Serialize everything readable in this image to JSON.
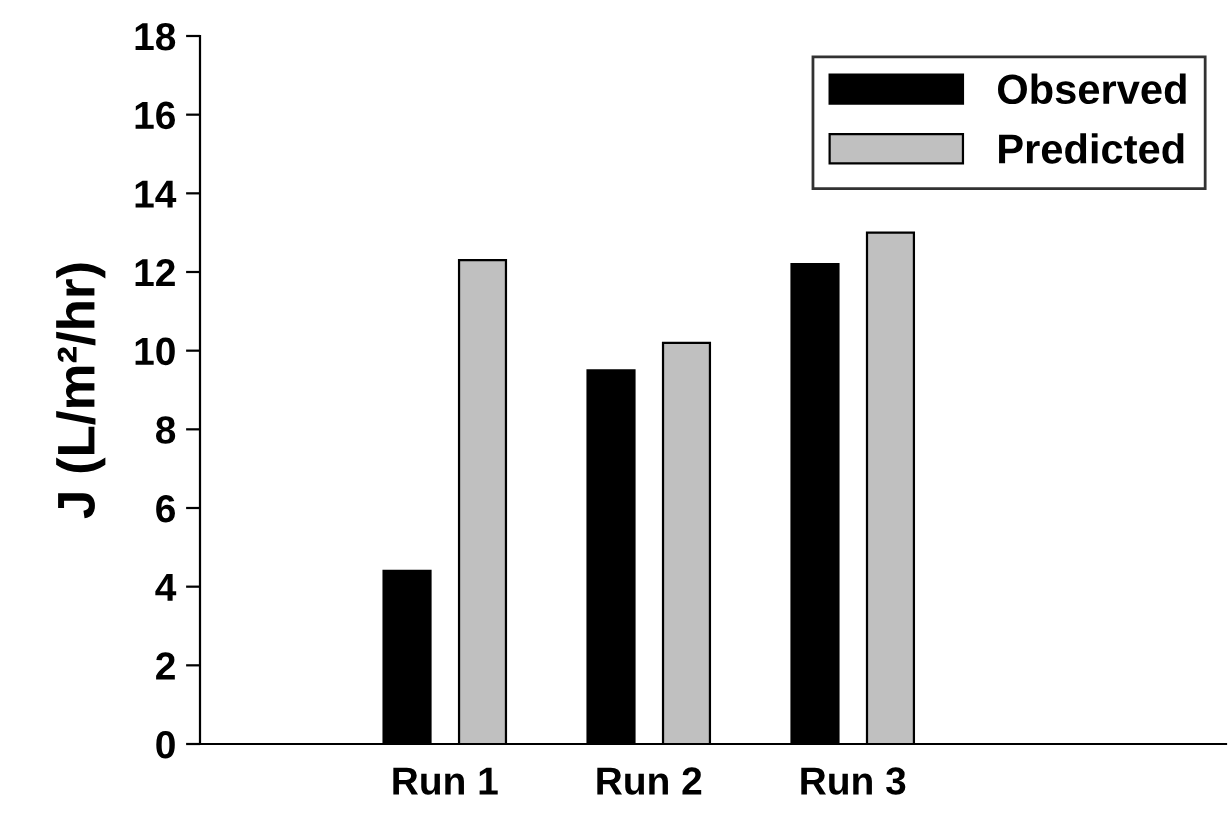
{
  "chart_data": {
    "type": "bar",
    "ylabel": "J (L/m²/hr)",
    "categories": [
      "Run 1",
      "Run 2",
      "Run 3"
    ],
    "series": [
      {
        "name": "Observed",
        "color": "#000000",
        "values": [
          4.4,
          9.5,
          12.2
        ]
      },
      {
        "name": "Predicted",
        "color": "#c0c0c0",
        "values": [
          12.3,
          10.2,
          13.0
        ]
      }
    ],
    "ylim": [
      0,
      18
    ],
    "yticks": [
      0,
      2,
      4,
      6,
      8,
      10,
      12,
      14,
      16,
      18
    ],
    "grid": false,
    "legend": "top right"
  }
}
